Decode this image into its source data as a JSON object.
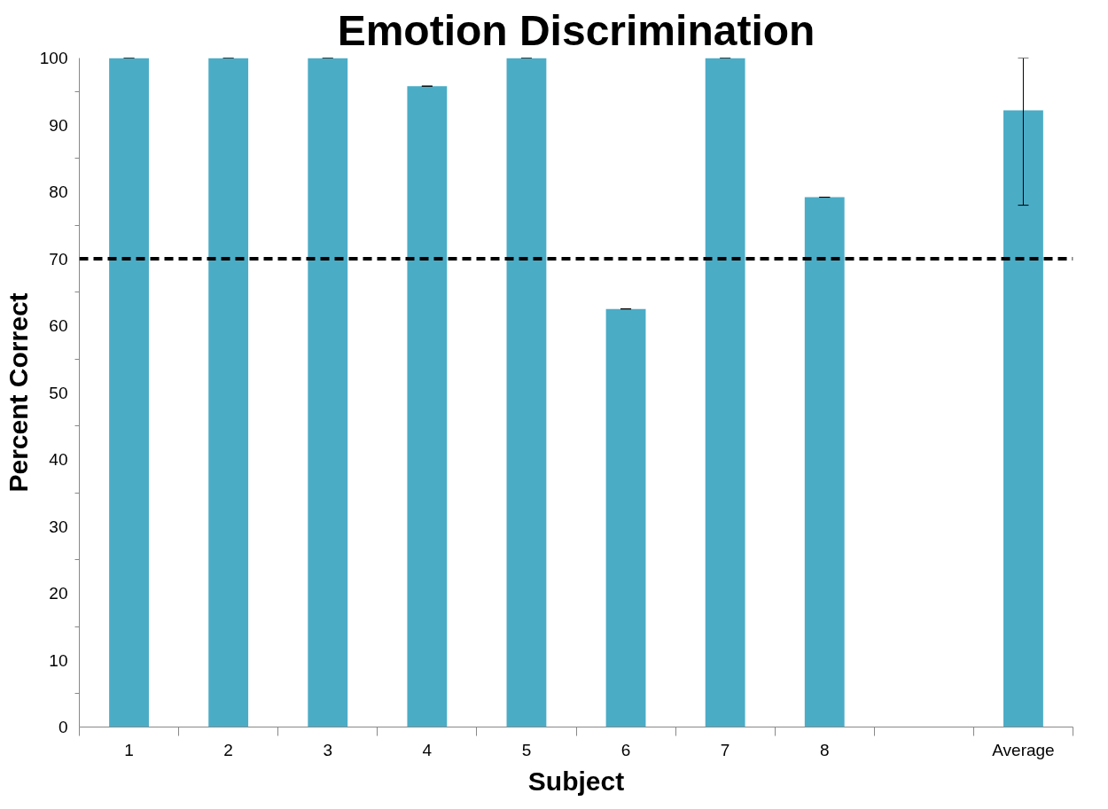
{
  "chart_data": {
    "type": "bar",
    "title": "Emotion Discrimination",
    "xlabel": "Subject",
    "ylabel": "Percent Correct",
    "categories": [
      "1",
      "2",
      "3",
      "4",
      "5",
      "6",
      "7",
      "8",
      null,
      "Average"
    ],
    "values": [
      100,
      100,
      100,
      95.8,
      100,
      62.5,
      100,
      79.2,
      null,
      92.2
    ],
    "errors": [
      0,
      0,
      0,
      0,
      0,
      0,
      0,
      0,
      null,
      [
        78,
        100
      ]
    ],
    "color": "#4bacc6",
    "ylim": [
      0,
      100
    ],
    "yticks": [
      0,
      10,
      20,
      30,
      40,
      50,
      60,
      70,
      80,
      90,
      100
    ],
    "ref_lines": [
      {
        "axis": "y",
        "value": 70,
        "color": "#000000",
        "line_style": "dashed"
      }
    ],
    "grid": false
  }
}
